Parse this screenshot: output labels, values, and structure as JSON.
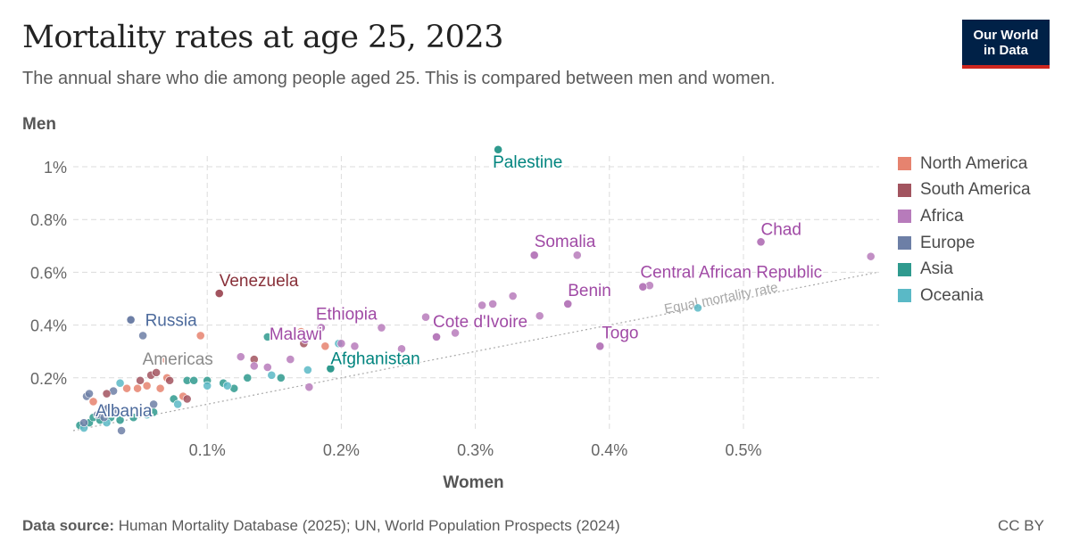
{
  "title": "Mortality rates at age 25, 2023",
  "subtitle": "The annual share who die among people aged 25. This is compared between men and women.",
  "logo": {
    "line1": "Our World",
    "line2": "in Data"
  },
  "footer": {
    "source_label": "Data source:",
    "source_text": "Human Mortality Database (2025); UN, World Population Prospects (2024)",
    "license": "CC BY"
  },
  "legend": [
    {
      "name": "North America",
      "color": "#e6836f"
    },
    {
      "name": "South America",
      "color": "#a2545f"
    },
    {
      "name": "Africa",
      "color": "#b77bbb"
    },
    {
      "name": "Europe",
      "color": "#6d7fa6"
    },
    {
      "name": "Asia",
      "color": "#2f9a8e"
    },
    {
      "name": "Oceania",
      "color": "#5ab9c6"
    }
  ],
  "chart_data": {
    "type": "scatter",
    "xlabel": "Women",
    "ylabel": "Men",
    "x_unit": "%",
    "y_unit": "%",
    "xlim": [
      0,
      0.6
    ],
    "ylim": [
      0,
      1.05
    ],
    "x_ticks": [
      {
        "value": 0.1,
        "label": "0.1%"
      },
      {
        "value": 0.2,
        "label": "0.2%"
      },
      {
        "value": 0.3,
        "label": "0.3%"
      },
      {
        "value": 0.4,
        "label": "0.4%"
      },
      {
        "value": 0.5,
        "label": "0.5%"
      }
    ],
    "y_ticks": [
      {
        "value": 0.2,
        "label": "0.2%"
      },
      {
        "value": 0.4,
        "label": "0.4%"
      },
      {
        "value": 0.6,
        "label": "0.6%"
      },
      {
        "value": 0.8,
        "label": "0.8%"
      },
      {
        "value": 1.0,
        "label": "1%"
      }
    ],
    "grid": true,
    "legend_position": "right",
    "reference_line": {
      "label": "Equal mortality rate",
      "from": [
        0,
        0
      ],
      "to": [
        0.6,
        0.6
      ]
    },
    "labeled_points": [
      {
        "name": "Palestine",
        "region": "Asia",
        "x": 0.317,
        "y": 1.065
      },
      {
        "name": "Chad",
        "region": "Africa",
        "x": 0.513,
        "y": 0.715
      },
      {
        "name": "Somalia",
        "region": "Africa",
        "x": 0.344,
        "y": 0.665
      },
      {
        "name": "Central African Republic",
        "region": "Africa",
        "x": 0.425,
        "y": 0.545
      },
      {
        "name": "Venezuela",
        "region": "South America",
        "x": 0.109,
        "y": 0.52
      },
      {
        "name": "Benin",
        "region": "Africa",
        "x": 0.369,
        "y": 0.48
      },
      {
        "name": "Ethiopia",
        "region": "Africa",
        "x": 0.185,
        "y": 0.39
      },
      {
        "name": "Russia",
        "region": "Europe",
        "x": 0.043,
        "y": 0.42
      },
      {
        "name": "Cote d'Ivoire",
        "region": "Africa",
        "x": 0.271,
        "y": 0.355
      },
      {
        "name": "Togo",
        "region": "Africa",
        "x": 0.393,
        "y": 0.32
      },
      {
        "name": "Malawi",
        "region": "Africa",
        "x": 0.173,
        "y": 0.345
      },
      {
        "name": "Afghanistan",
        "region": "Asia",
        "x": 0.192,
        "y": 0.235
      },
      {
        "name": "Americas",
        "region": "North America",
        "x": 0.069,
        "y": 0.27
      },
      {
        "name": "Albania",
        "region": "Europe",
        "x": 0.026,
        "y": 0.085
      }
    ],
    "points": [
      {
        "region": "Asia",
        "x": 0.005,
        "y": 0.02
      },
      {
        "region": "Asia",
        "x": 0.012,
        "y": 0.03
      },
      {
        "region": "Asia",
        "x": 0.015,
        "y": 0.05
      },
      {
        "region": "Asia",
        "x": 0.02,
        "y": 0.04
      },
      {
        "region": "Asia",
        "x": 0.028,
        "y": 0.05
      },
      {
        "region": "Asia",
        "x": 0.035,
        "y": 0.04
      },
      {
        "region": "Asia",
        "x": 0.045,
        "y": 0.05
      },
      {
        "region": "Asia",
        "x": 0.06,
        "y": 0.07
      },
      {
        "region": "Asia",
        "x": 0.075,
        "y": 0.12
      },
      {
        "region": "Asia",
        "x": 0.085,
        "y": 0.19
      },
      {
        "region": "Asia",
        "x": 0.1,
        "y": 0.19
      },
      {
        "region": "Asia",
        "x": 0.112,
        "y": 0.18
      },
      {
        "region": "Asia",
        "x": 0.13,
        "y": 0.2
      },
      {
        "region": "Asia",
        "x": 0.145,
        "y": 0.355
      },
      {
        "region": "Asia",
        "x": 0.155,
        "y": 0.2
      },
      {
        "region": "Asia",
        "x": 0.12,
        "y": 0.16
      },
      {
        "region": "Asia",
        "x": 0.09,
        "y": 0.19
      },
      {
        "region": "Oceania",
        "x": 0.008,
        "y": 0.01
      },
      {
        "region": "Oceania",
        "x": 0.025,
        "y": 0.03
      },
      {
        "region": "Oceania",
        "x": 0.035,
        "y": 0.18
      },
      {
        "region": "Oceania",
        "x": 0.055,
        "y": 0.06
      },
      {
        "region": "Oceania",
        "x": 0.078,
        "y": 0.1
      },
      {
        "region": "Oceania",
        "x": 0.1,
        "y": 0.17
      },
      {
        "region": "Oceania",
        "x": 0.115,
        "y": 0.17
      },
      {
        "region": "Oceania",
        "x": 0.148,
        "y": 0.21
      },
      {
        "region": "Oceania",
        "x": 0.175,
        "y": 0.23
      },
      {
        "region": "Oceania",
        "x": 0.198,
        "y": 0.33
      },
      {
        "region": "Oceania",
        "x": 0.466,
        "y": 0.465
      },
      {
        "region": "Europe",
        "x": 0.008,
        "y": 0.03
      },
      {
        "region": "Europe",
        "x": 0.01,
        "y": 0.13
      },
      {
        "region": "Europe",
        "x": 0.012,
        "y": 0.14
      },
      {
        "region": "Europe",
        "x": 0.018,
        "y": 0.06
      },
      {
        "region": "Europe",
        "x": 0.023,
        "y": 0.05
      },
      {
        "region": "Europe",
        "x": 0.032,
        "y": 0.08
      },
      {
        "region": "Europe",
        "x": 0.036,
        "y": 0.0
      },
      {
        "region": "Europe",
        "x": 0.03,
        "y": 0.15
      },
      {
        "region": "Europe",
        "x": 0.052,
        "y": 0.36
      },
      {
        "region": "Europe",
        "x": 0.06,
        "y": 0.1
      },
      {
        "region": "North America",
        "x": 0.015,
        "y": 0.11
      },
      {
        "region": "North America",
        "x": 0.04,
        "y": 0.16
      },
      {
        "region": "North America",
        "x": 0.048,
        "y": 0.16
      },
      {
        "region": "North America",
        "x": 0.055,
        "y": 0.17
      },
      {
        "region": "North America",
        "x": 0.065,
        "y": 0.16
      },
      {
        "region": "North America",
        "x": 0.07,
        "y": 0.2
      },
      {
        "region": "North America",
        "x": 0.082,
        "y": 0.13
      },
      {
        "region": "North America",
        "x": 0.095,
        "y": 0.36
      },
      {
        "region": "North America",
        "x": 0.17,
        "y": 0.375
      },
      {
        "region": "North America",
        "x": 0.188,
        "y": 0.32
      },
      {
        "region": "South America",
        "x": 0.025,
        "y": 0.14
      },
      {
        "region": "South America",
        "x": 0.05,
        "y": 0.19
      },
      {
        "region": "South America",
        "x": 0.058,
        "y": 0.21
      },
      {
        "region": "South America",
        "x": 0.062,
        "y": 0.22
      },
      {
        "region": "South America",
        "x": 0.072,
        "y": 0.19
      },
      {
        "region": "South America",
        "x": 0.085,
        "y": 0.12
      },
      {
        "region": "South America",
        "x": 0.135,
        "y": 0.27
      },
      {
        "region": "South America",
        "x": 0.172,
        "y": 0.33
      },
      {
        "region": "Africa",
        "x": 0.125,
        "y": 0.28
      },
      {
        "region": "Africa",
        "x": 0.135,
        "y": 0.245
      },
      {
        "region": "Africa",
        "x": 0.145,
        "y": 0.24
      },
      {
        "region": "Africa",
        "x": 0.162,
        "y": 0.27
      },
      {
        "region": "Africa",
        "x": 0.176,
        "y": 0.165
      },
      {
        "region": "Africa",
        "x": 0.2,
        "y": 0.33
      },
      {
        "region": "Africa",
        "x": 0.21,
        "y": 0.32
      },
      {
        "region": "Africa",
        "x": 0.23,
        "y": 0.39
      },
      {
        "region": "Africa",
        "x": 0.245,
        "y": 0.31
      },
      {
        "region": "Africa",
        "x": 0.263,
        "y": 0.43
      },
      {
        "region": "Africa",
        "x": 0.285,
        "y": 0.37
      },
      {
        "region": "Africa",
        "x": 0.305,
        "y": 0.475
      },
      {
        "region": "Africa",
        "x": 0.313,
        "y": 0.48
      },
      {
        "region": "Africa",
        "x": 0.328,
        "y": 0.51
      },
      {
        "region": "Africa",
        "x": 0.348,
        "y": 0.435
      },
      {
        "region": "Africa",
        "x": 0.376,
        "y": 0.665
      },
      {
        "region": "Africa",
        "x": 0.43,
        "y": 0.55
      },
      {
        "region": "Africa",
        "x": 0.595,
        "y": 0.66
      }
    ]
  }
}
